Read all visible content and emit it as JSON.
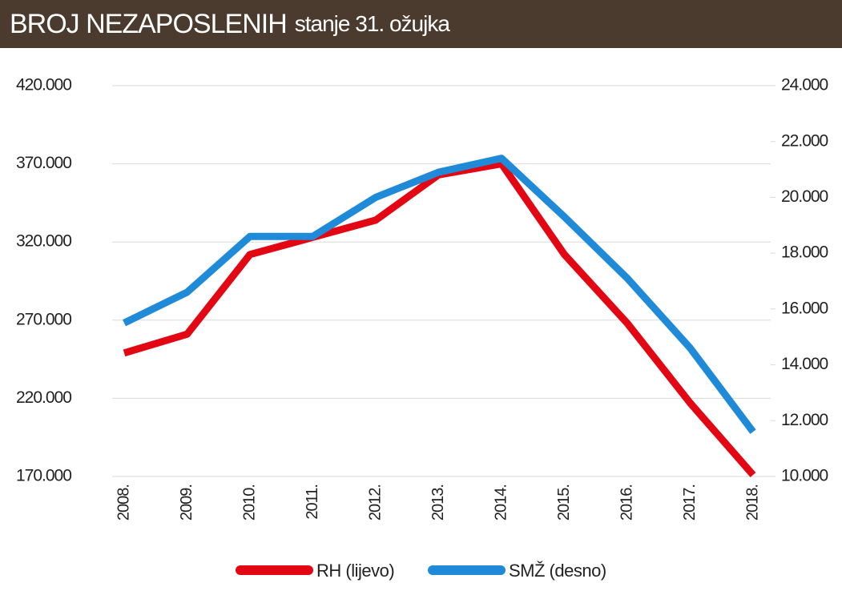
{
  "chart_data": {
    "type": "line",
    "title": "BROJ NEZAPOSLENIH",
    "subtitle": "stanje 31. ožujka",
    "categories": [
      "2008.",
      "2009.",
      "2010.",
      "2011.",
      "2012.",
      "2013.",
      "2014.",
      "2015.",
      "2016.",
      "2017.",
      "2018."
    ],
    "series": [
      {
        "name": "RH (lijevo)",
        "color": "#e30613",
        "values": [
          249000,
          261000,
          312000,
          323000,
          334000,
          363000,
          370000,
          312000,
          268000,
          217000,
          171000
        ]
      },
      {
        "name": "SMŽ (desno)",
        "color": "#1f8ad8",
        "axis": "y2",
        "values": [
          15500,
          16600,
          18600,
          18600,
          20000,
          20900,
          21400,
          19300,
          17100,
          14600,
          11600
        ]
      }
    ],
    "ylim": [
      170000,
      420000
    ],
    "yticks": [
      {
        "value": 170000,
        "label": "170.000"
      },
      {
        "value": 220000,
        "label": "220.000"
      },
      {
        "value": 270000,
        "label": "270.000"
      },
      {
        "value": 320000,
        "label": "320.000"
      },
      {
        "value": 370000,
        "label": "370.000"
      },
      {
        "value": 420000,
        "label": "420.000"
      }
    ],
    "y2lim": [
      10000,
      24000
    ],
    "y2ticks": [
      {
        "value": 10000,
        "label": "10.000"
      },
      {
        "value": 12000,
        "label": "12.000"
      },
      {
        "value": 14000,
        "label": "14.000"
      },
      {
        "value": 16000,
        "label": "16.000"
      },
      {
        "value": 18000,
        "label": "18.000"
      },
      {
        "value": 20000,
        "label": "20.000"
      },
      {
        "value": 22000,
        "label": "22.000"
      },
      {
        "value": 24000,
        "label": "24.000"
      }
    ],
    "grid": true,
    "legend": "bottom"
  }
}
